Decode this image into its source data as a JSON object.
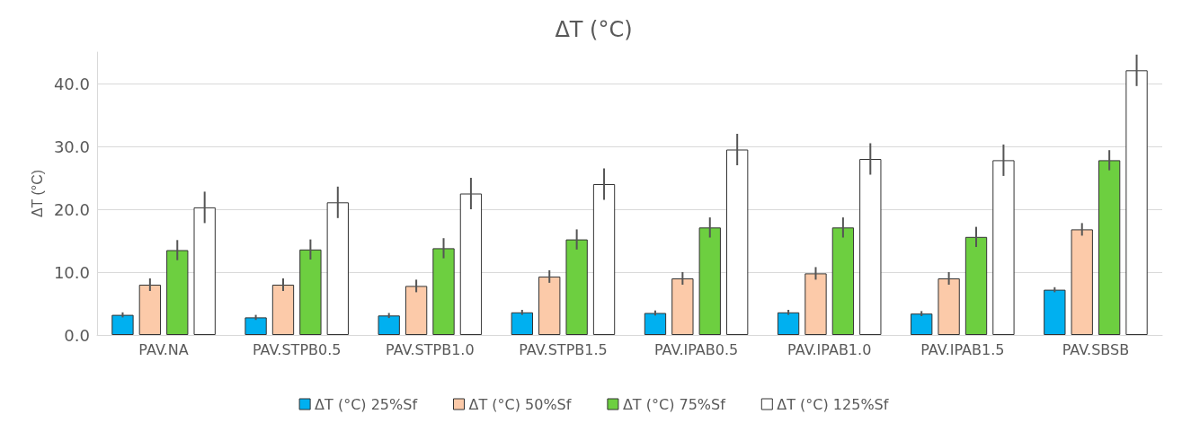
{
  "chart_data": {
    "type": "bar",
    "title": "ΔT (°C)",
    "ylabel": "ΔT (°C)",
    "categories": [
      "PAV.NA",
      "PAV.STPB0.5",
      "PAV.STPB1.0",
      "PAV.STPB1.5",
      "PAV.IPAB0.5",
      "PAV.IPAB1.0",
      "PAV.IPAB1.5",
      "PAV.SBSB"
    ],
    "series": [
      {
        "name": "ΔT (°C) 25%Sf",
        "color": "#00b0f0",
        "values": [
          3.2,
          2.8,
          3.1,
          3.6,
          3.5,
          3.6,
          3.4,
          7.2
        ],
        "errors": [
          0.4,
          0.4,
          0.4,
          0.4,
          0.4,
          0.4,
          0.4,
          0.4
        ]
      },
      {
        "name": "ΔT (°C) 50%Sf",
        "color": "#fccaa9",
        "values": [
          8.0,
          8.0,
          7.8,
          9.3,
          9.0,
          9.8,
          9.0,
          16.8
        ],
        "errors": [
          1.0,
          1.0,
          1.0,
          1.0,
          1.0,
          1.0,
          1.0,
          1.0
        ]
      },
      {
        "name": "ΔT (°C) 75%Sf",
        "color": "#6dcf40",
        "values": [
          13.5,
          13.6,
          13.8,
          15.2,
          17.1,
          17.1,
          15.6,
          27.8
        ],
        "errors": [
          1.6,
          1.6,
          1.6,
          1.6,
          1.6,
          1.6,
          1.6,
          1.6
        ]
      },
      {
        "name": "ΔT (°C) 125%Sf",
        "color": "#ffffff",
        "values": [
          20.3,
          21.1,
          22.5,
          24.0,
          29.5,
          28.0,
          27.8,
          42.1
        ],
        "errors": [
          2.5,
          2.5,
          2.5,
          2.5,
          2.5,
          2.5,
          2.5,
          2.5
        ]
      }
    ],
    "ylim": [
      0,
      45
    ],
    "yticks": [
      {
        "value": 0,
        "label": "0.0"
      },
      {
        "value": 10,
        "label": "10.0"
      },
      {
        "value": 20,
        "label": "20.0"
      },
      {
        "value": 30,
        "label": "30.0"
      },
      {
        "value": 40,
        "label": "40.0"
      }
    ],
    "grid": "y",
    "legend": "bottom"
  }
}
